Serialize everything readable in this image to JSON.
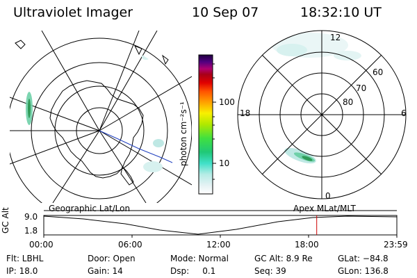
{
  "header": {
    "title": "Ultraviolet Imager",
    "date": "10 Sep 07",
    "time": "18:32:10 UT"
  },
  "left_map": {
    "projection": "Geographic Lat/Lon"
  },
  "colorbar": {
    "label": "photon cm⁻²s⁻¹",
    "ticks": [
      "100",
      "10"
    ]
  },
  "right_polar": {
    "projection": "Apex MLat/MLT",
    "mlt_labels": {
      "top": "12",
      "left": "18",
      "right": "6",
      "bottom": "0"
    },
    "lat_labels": [
      "60",
      "70",
      "80"
    ]
  },
  "timeline": {
    "ylabel": "GC Alt",
    "ytick_top": "9.0",
    "ytick_bottom": "1.8",
    "xticks": [
      "00:00",
      "06:00",
      "12:00",
      "18:00",
      "23:59"
    ],
    "current_time_hours": 18.54
  },
  "info": {
    "filter": "Flt: LBHL",
    "ip": "IP: 18.0",
    "door": "Door: Open",
    "gain": "Gain: 14",
    "mode": "Mode: Normal",
    "dsp": "Dsp:     0.1",
    "gc_alt": "GC Alt: 8.9 Re",
    "seq": "Seq: 39",
    "glat": "GLat: −84.8",
    "glon": "GLon: 136.8"
  },
  "colors": {
    "aurora_high": "#2f9b57",
    "aurora_mid": "#8fd6a3",
    "aurora_low": "#bfe8e4",
    "current_time_line": "#cc0000",
    "track_line": "#1f3fbf"
  }
}
